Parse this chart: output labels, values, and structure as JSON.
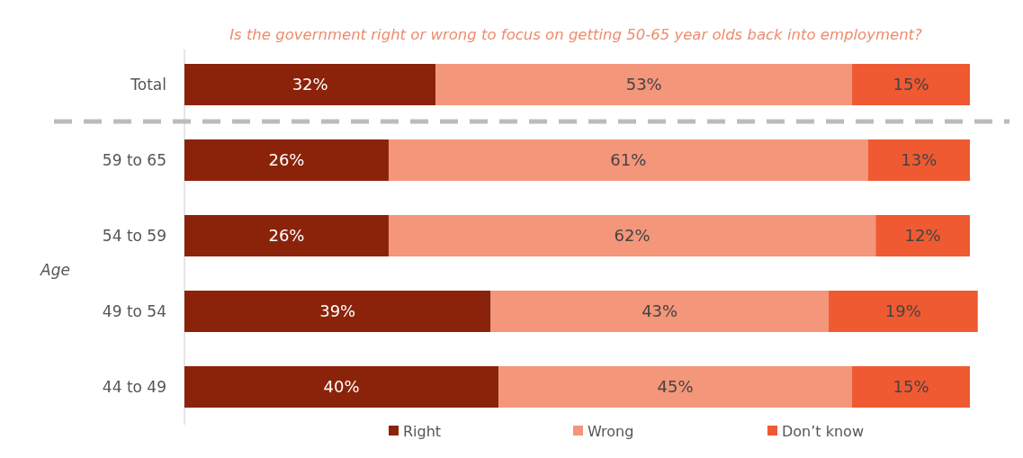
{
  "chart_data": {
    "type": "bar",
    "orientation": "horizontal",
    "stacked": true,
    "title": "Is the government right or wrong to focus on getting 50-65 year olds back into employment?",
    "ylabel": "Age",
    "categories": [
      "Total",
      "59 to 65",
      "54 to 59",
      "49 to 54",
      "44 to 49"
    ],
    "legend": "bottom",
    "series": [
      {
        "name": "Right",
        "color": "#8b230b",
        "values": [
          32,
          26,
          26,
          39,
          40
        ],
        "value_labels": [
          "32%",
          "26%",
          "26%",
          "39%",
          "40%"
        ]
      },
      {
        "name": "Wrong",
        "color": "#f4967a",
        "values": [
          53,
          61,
          62,
          43,
          45
        ],
        "value_labels": [
          "53%",
          "61%",
          "62%",
          "43%",
          "45%"
        ]
      },
      {
        "name": "Don’t know",
        "color": "#ef5a32",
        "values": [
          15,
          13,
          12,
          19,
          15
        ],
        "value_labels": [
          "15%",
          "13%",
          "12%",
          "19%",
          "15%"
        ]
      }
    ]
  }
}
